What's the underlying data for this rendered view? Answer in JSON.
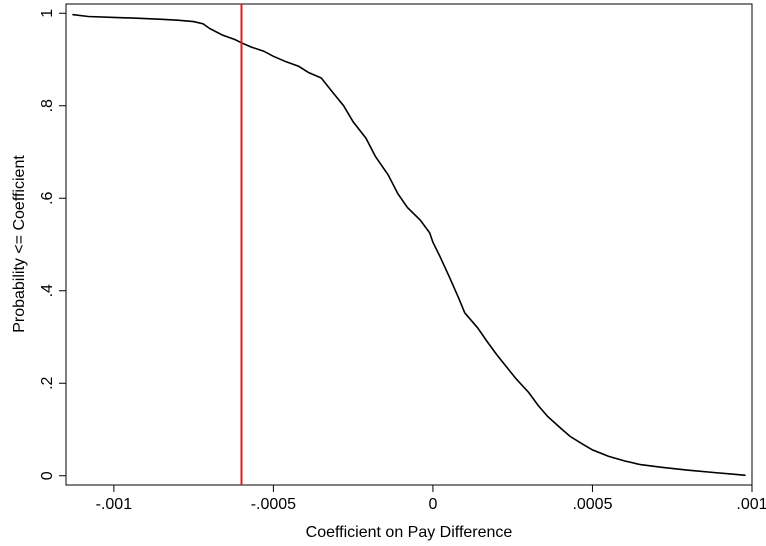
{
  "chart_data": {
    "type": "line",
    "xlabel": "Coefficient on Pay Difference",
    "ylabel": "Probability <= Coefficient",
    "xlim": [
      -0.00115,
      0.001
    ],
    "ylim": [
      -0.02,
      1.02
    ],
    "x_ticks": [
      {
        "value": -0.001,
        "label": "-.001"
      },
      {
        "value": -0.0005,
        "label": "-.0005"
      },
      {
        "value": 0,
        "label": "0"
      },
      {
        "value": 0.0005,
        "label": ".0005"
      },
      {
        "value": 0.001,
        "label": ".001"
      }
    ],
    "y_ticks": [
      {
        "value": 0,
        "label": "0"
      },
      {
        "value": 0.2,
        "label": ".2"
      },
      {
        "value": 0.4,
        "label": ".4"
      },
      {
        "value": 0.6,
        "label": ".6"
      },
      {
        "value": 0.8,
        "label": ".8"
      },
      {
        "value": 1,
        "label": "1"
      }
    ],
    "grid": false,
    "series": [
      {
        "color": "#000000",
        "x": [
          -0.00113,
          -0.00108,
          -0.001,
          -0.00092,
          -0.00085,
          -0.0008,
          -0.00075,
          -0.00072,
          -0.0007,
          -0.00066,
          -0.00062,
          -0.0006,
          -0.00057,
          -0.00053,
          -0.0005,
          -0.00046,
          -0.00042,
          -0.00039,
          -0.00035,
          -0.00032,
          -0.00028,
          -0.00025,
          -0.00021,
          -0.00018,
          -0.00014,
          -0.00011,
          -8e-05,
          -4e-05,
          -1e-05,
          0.0,
          2e-05,
          5e-05,
          8e-05,
          0.0001,
          0.00014,
          0.00017,
          0.0002,
          0.00023,
          0.00026,
          0.0003,
          0.00033,
          0.00036,
          0.0004,
          0.00043,
          0.00047,
          0.0005,
          0.00055,
          0.0006,
          0.00065,
          0.00072,
          0.0008,
          0.00088,
          0.00095,
          0.00098
        ],
        "y": [
          0.997,
          0.993,
          0.991,
          0.989,
          0.987,
          0.985,
          0.982,
          0.977,
          0.967,
          0.953,
          0.943,
          0.936,
          0.927,
          0.918,
          0.907,
          0.895,
          0.885,
          0.872,
          0.86,
          0.834,
          0.8,
          0.765,
          0.73,
          0.69,
          0.65,
          0.61,
          0.58,
          0.553,
          0.525,
          0.505,
          0.477,
          0.432,
          0.385,
          0.352,
          0.32,
          0.29,
          0.262,
          0.236,
          0.21,
          0.18,
          0.152,
          0.128,
          0.103,
          0.085,
          0.068,
          0.056,
          0.042,
          0.032,
          0.024,
          0.018,
          0.012,
          0.007,
          0.003,
          0.001
        ]
      }
    ],
    "reference_lines": [
      {
        "orientation": "vertical",
        "x": -0.0006,
        "color": "#e41a1c"
      }
    ]
  }
}
